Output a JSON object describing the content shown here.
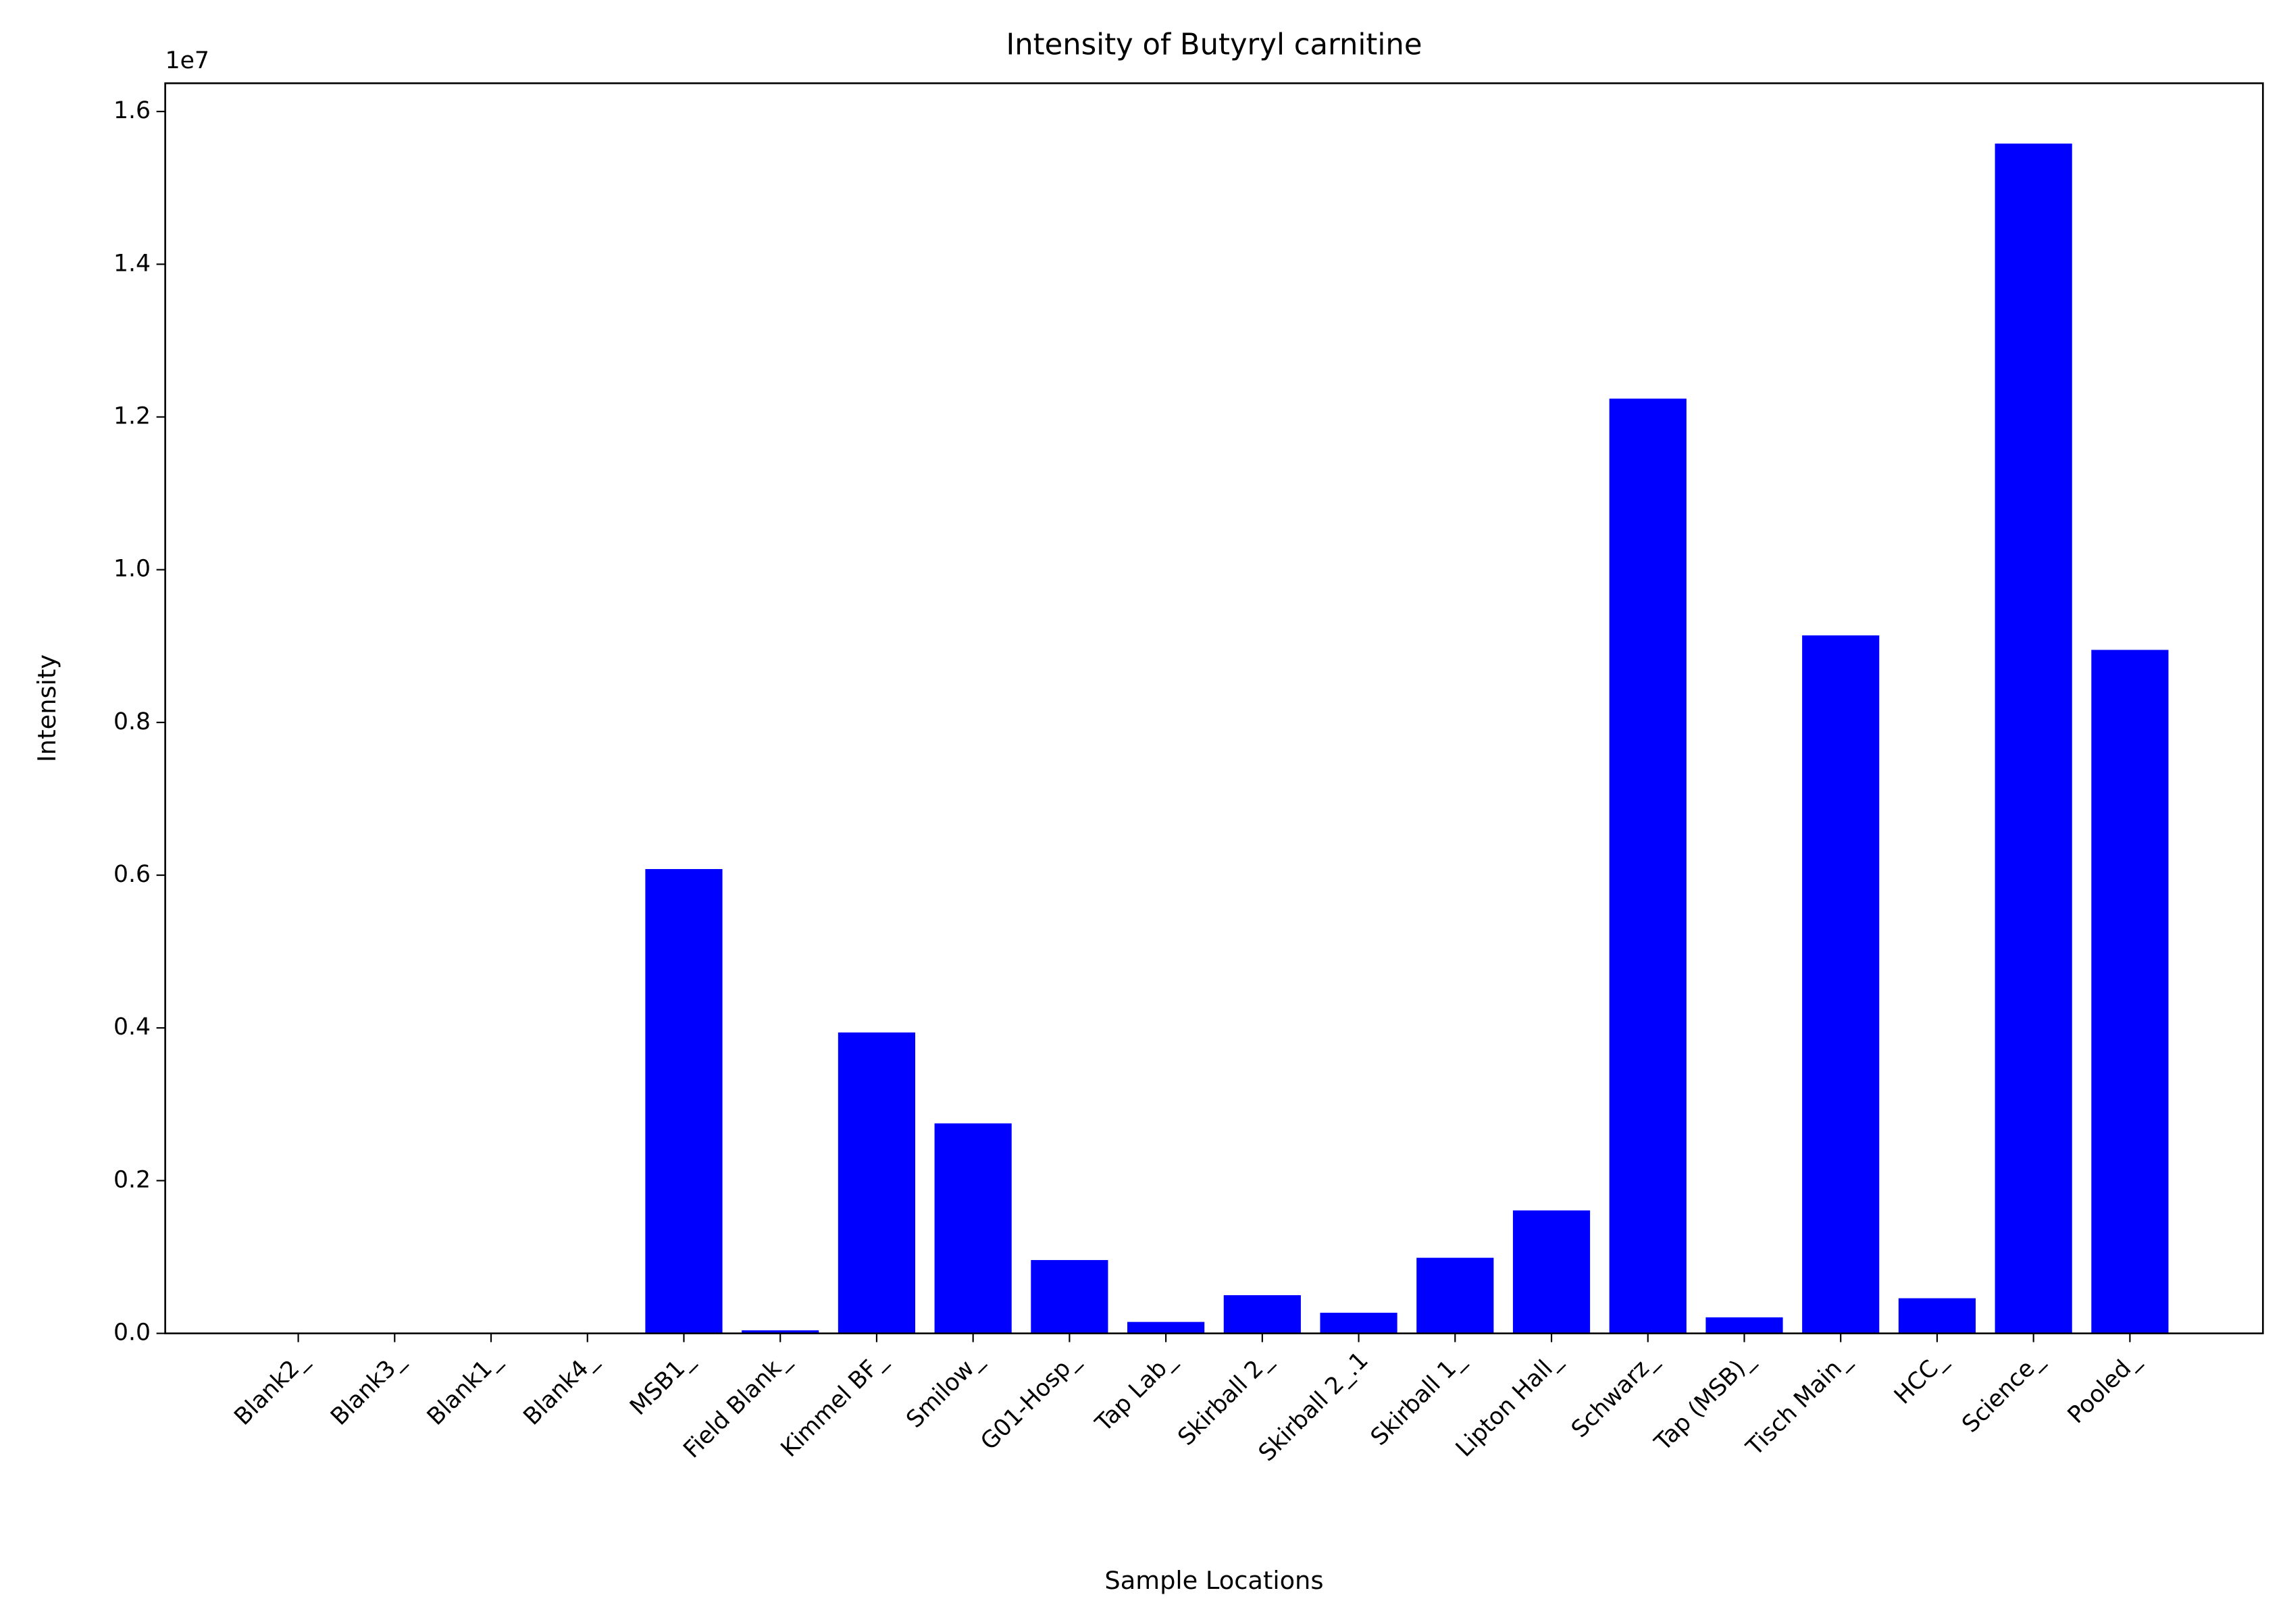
{
  "chart_data": {
    "type": "bar",
    "title": "Intensity of Butyryl carnitine",
    "x_label": "Sample Locations",
    "y_label": "Intensity",
    "y_offset_label": "1e7",
    "categories": [
      "Blank2_",
      "Blank3_",
      "Blank1_",
      "Blank4_",
      "MSB1_",
      "Field Blank_",
      "Kimmel BF_",
      "Smilow_",
      "G01-Hosp_",
      "Tap Lab_",
      "Skirball 2_",
      "Skirball 2_.1",
      "Skirball 1_",
      "Lipton Hall_",
      "Schwarz_",
      "Tap (MSB)_",
      "Tisch Main_",
      "HCC_",
      "Science_",
      "Pooled_"
    ],
    "values": [
      0,
      0,
      0,
      0,
      6080000,
      40000,
      3940000,
      2750000,
      960000,
      150000,
      500000,
      270000,
      990000,
      1610000,
      12240000,
      210000,
      9140000,
      460000,
      15580000,
      8950000
    ],
    "color": "#0000ff",
    "ylim": [
      0,
      16370000
    ],
    "yticks": [
      {
        "value": 0,
        "label": "0.0"
      },
      {
        "value": 2000000,
        "label": "0.2"
      },
      {
        "value": 4000000,
        "label": "0.4"
      },
      {
        "value": 6000000,
        "label": "0.6"
      },
      {
        "value": 8000000,
        "label": "0.8"
      },
      {
        "value": 10000000,
        "label": "1.0"
      },
      {
        "value": 12000000,
        "label": "1.2"
      },
      {
        "value": 14000000,
        "label": "1.4"
      },
      {
        "value": 16000000,
        "label": "1.6"
      }
    ],
    "grid": false
  }
}
